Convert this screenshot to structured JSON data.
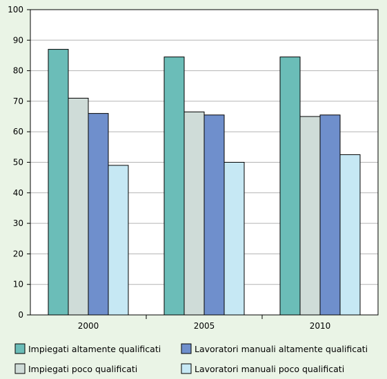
{
  "chart_data": {
    "type": "bar",
    "title": "",
    "xlabel": "",
    "ylabel": "",
    "categories": [
      "2000",
      "2005",
      "2010"
    ],
    "ylim": [
      0,
      100
    ],
    "yticks": [
      0,
      10,
      20,
      30,
      40,
      50,
      60,
      70,
      80,
      90,
      100
    ],
    "grid": true,
    "legend_position": "bottom",
    "series": [
      {
        "name": "Impiegati altamente qualificati",
        "color": "#6bbdb8",
        "values": [
          87,
          84.5,
          84.5
        ]
      },
      {
        "name": "Impiegati poco qualificati",
        "color": "#cfdcd8",
        "values": [
          71,
          66.5,
          65
        ]
      },
      {
        "name": "Lavoratori manuali altamente qualificati",
        "color": "#6f8fcc",
        "values": [
          66,
          65.5,
          65.5
        ]
      },
      {
        "name": "Lavoratori manuali poco qualificati",
        "color": "#c6e8f4",
        "values": [
          49,
          50,
          52.5
        ]
      }
    ]
  }
}
